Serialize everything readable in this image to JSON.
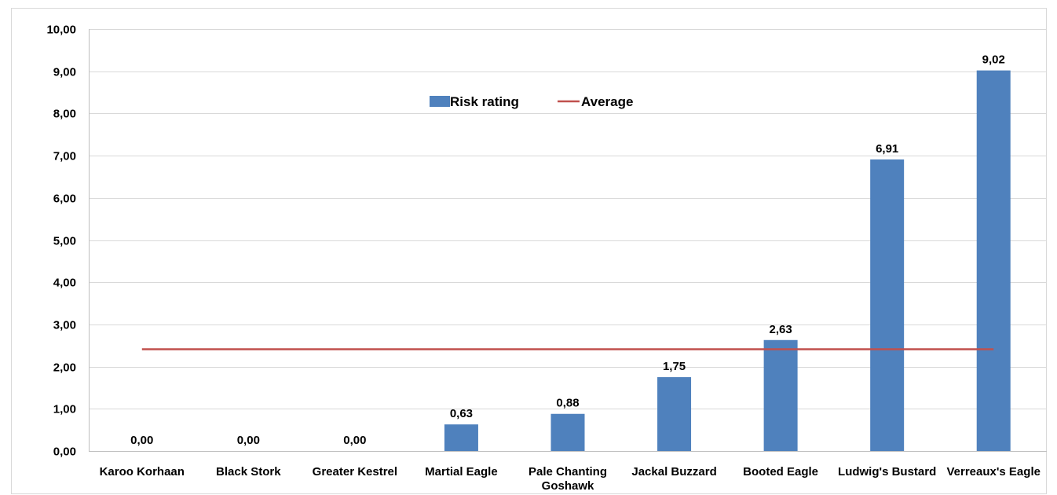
{
  "chart_data": {
    "type": "bar",
    "categories": [
      "Karoo Korhaan",
      "Black Stork",
      "Greater Kestrel",
      "Martial Eagle",
      "Pale Chanting Goshawk",
      "Jackal Buzzard",
      "Booted Eagle",
      "Ludwig's Bustard",
      "Verreaux's Eagle"
    ],
    "series": [
      {
        "name": "Risk rating",
        "type": "bar",
        "values": [
          0.0,
          0.0,
          0.0,
          0.63,
          0.88,
          1.75,
          2.63,
          6.91,
          9.02
        ],
        "labels": [
          "0,00",
          "0,00",
          "0,00",
          "0,63",
          "0,88",
          "1,75",
          "2,63",
          "6,91",
          "9,02"
        ],
        "color": "#4F81BD"
      },
      {
        "name": "Average",
        "type": "line",
        "value": 2.43,
        "color": "#C0504D"
      }
    ],
    "yticks": [
      "0,00",
      "1,00",
      "2,00",
      "3,00",
      "4,00",
      "5,00",
      "6,00",
      "7,00",
      "8,00",
      "9,00",
      "10,00"
    ],
    "ylim": [
      0,
      10
    ],
    "grid": true,
    "legend": "top-center",
    "title": "",
    "xlabel": "",
    "ylabel": ""
  }
}
